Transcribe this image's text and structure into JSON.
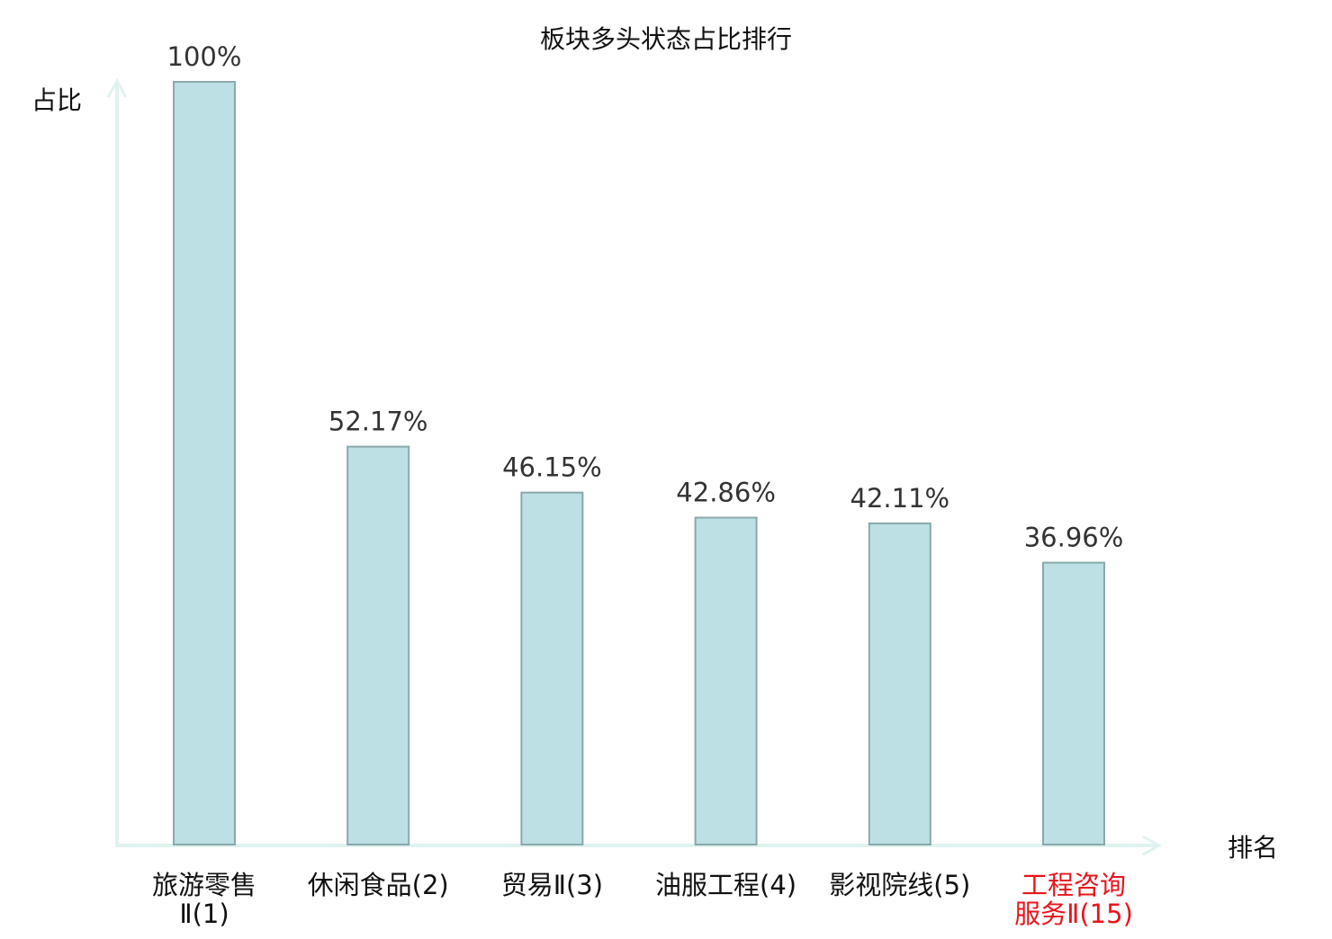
{
  "chart_data": {
    "type": "bar",
    "title": "板块多头状态占比排行",
    "xlabel": "排名",
    "ylabel": "占比",
    "ylim": [
      0,
      100
    ],
    "grid": false,
    "categories": [
      {
        "lines": [
          "旅游零售",
          "Ⅱ(1)"
        ],
        "highlight": false
      },
      {
        "lines": [
          "休闲食品(2)"
        ],
        "highlight": false
      },
      {
        "lines": [
          "贸易Ⅱ(3)"
        ],
        "highlight": false
      },
      {
        "lines": [
          "油服工程(4)"
        ],
        "highlight": false
      },
      {
        "lines": [
          "影视院线(5)"
        ],
        "highlight": false
      },
      {
        "lines": [
          "工程咨询",
          "服务Ⅱ(15)"
        ],
        "highlight": true
      }
    ],
    "values": [
      100,
      52.17,
      46.15,
      42.86,
      42.11,
      36.96
    ],
    "value_labels": [
      "100%",
      "52.17%",
      "46.15%",
      "42.86%",
      "42.11%",
      "36.96%"
    ],
    "colors": {
      "bar_fill": "#bce0e3",
      "bar_stroke": "#8aa8aa",
      "axis": "#dff2ef",
      "highlight": "#e8141b",
      "text": "#222222"
    }
  }
}
